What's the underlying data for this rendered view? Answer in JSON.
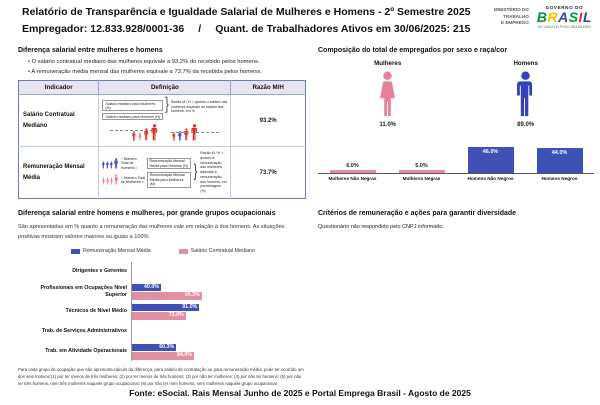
{
  "header": {
    "title": "Relatório de Transparência e Igualdade Salarial de Mulheres e Homens - 2º Semestre 2025",
    "employer": "Empregador: 12.833.928/0001-36",
    "separator": "/",
    "workers": "Quant. de Trabalhadores Ativos em 30/06/2025: 215",
    "ministry": "MINISTÉRIO DO\nTRABALHO\nE EMPREGO",
    "gov_top": "GOVERNO DO",
    "gov_name": "BRASIL",
    "gov_name_colors": [
      "#00923B",
      "#F8C300",
      "#2B4899",
      "#00923B",
      "#E03227",
      "#2B4899"
    ],
    "gov_tagline": "DO LADO DO POVO BRASILEIRO"
  },
  "salary_gap": {
    "heading": "Diferença salarial entre mulheres e homens",
    "bullets": [
      "O salário contratual mediano das mulheres equivale a 93.2% do recebido pelos homens.",
      "A remuneração média mensal das mulheres equivale a 73.7% da recebida pelos homens."
    ],
    "table": {
      "headers": [
        "Indicador",
        "Definição",
        "Razão M/H"
      ],
      "rows": [
        {
          "indicator": "Salário Contratual Mediano",
          "ratio": "93.2%",
          "def_line_women": "Salário mediano para Mulheres (M)",
          "def_line_men": "Salário mediano para Homens (H)",
          "def_note": "Razão M / H = quanto o salário das mulheres equivale ao salário dos homens, em %"
        },
        {
          "indicator": "Remuneração Mensal Média",
          "ratio": "73.7%",
          "formula_men_divisor": "÷ Número Total de Homens =",
          "formula_men_result": "Remuneração Mensal Média para Homens (H)",
          "formula_women_divisor": "÷ Número Total de Mulheres =",
          "formula_women_result": "Remuneração Mensal Média para Mulheres (M)",
          "def_note": "Razão M / H = quanto a remuneração das mulheres equivale à remuneração dos homens, em porcentagem (%)"
        }
      ]
    }
  },
  "composition": {
    "heading": "Composição do total de empregados por sexo e raça/cor"
  },
  "occupation": {
    "heading": "Diferença salarial entre homens e mulheres, por grande grupos ocupacionais",
    "description": "São apresentadas em % quanto a remuneração das mulheres vale em relação à dos homens. As situações positivas mostram valores maiores ou iguais a 100%",
    "footnote": "Para cada grupo de ocupação que não apresenta cálculo da diferença, para salário de contratação ou para remuneração média, pode ter ocorrido um dos seis motivos:(1) por ter menos de três mulheres; (2) por ter menos de três homens; (3) por não ter mulheres; (4) por não ter homens; (5) por não ter três homens, nem três mulheres naquele grupo ocupacional; (6) por não ter nem homens, nem mulheres naquele grupo ocupacional"
  },
  "criteria": {
    "heading": "Critérios de remuneração e ações para garantir diversidade",
    "body": "Questionário não respondido pelo CNPJ informado."
  },
  "footer": {
    "source": "Fonte: eSocial. Rais Mensal Junho de 2025 e Portal Emprega Brasil - Agosto de 2025"
  },
  "colors": {
    "accent_blue": "#3F50B6",
    "accent_pink": "#E18FA2",
    "accent_red": "#DE2A1B"
  },
  "chart_data": [
    {
      "id": "employees_by_sex",
      "type": "pictogram",
      "categories": [
        "Mulheres",
        "Homens"
      ],
      "values": [
        11.0,
        89.0
      ],
      "labels": [
        "11.0%",
        "89.0%"
      ]
    },
    {
      "id": "employees_by_sex_race",
      "type": "bar",
      "categories": [
        "Mulheres Não Negras",
        "Mulheres Negras",
        "Homens Não Negros",
        "Homens Negros"
      ],
      "values": [
        6.0,
        5.0,
        46.0,
        44.0
      ],
      "labels": [
        "6.0%",
        "5.0%",
        "46.0%",
        "44.0%"
      ],
      "colors": [
        "#E18FA2",
        "#E18FA2",
        "#3F50B6",
        "#3F50B6"
      ],
      "ylim": [
        0,
        50
      ],
      "grid": false
    },
    {
      "id": "gap_by_occupation",
      "type": "bar-horizontal",
      "categories": [
        "Dirigentes e Gerentes",
        "Profissionais em Ocupações Nível Superior",
        "Técnicos de Nível Médio",
        "Trab. de Serviços Administrativos",
        "Trab. em Atividade Operacionais"
      ],
      "series": [
        {
          "name": "Remuneração Mensal Média",
          "color": "#3F50B6",
          "values": [
            null,
            40.0,
            91.0,
            null,
            60.3
          ],
          "labels": [
            "",
            "40.0%",
            "91.0%",
            "",
            "60.3%"
          ]
        },
        {
          "name": "Salário Contratual Mediano",
          "color": "#E18FA2",
          "values": [
            null,
            94.3,
            73.0,
            null,
            84.0
          ],
          "labels": [
            "",
            "94.3%",
            "73.0%",
            "",
            "84.0%"
          ]
        }
      ],
      "xlim": [
        0,
        100
      ],
      "legend_position": "top"
    }
  ]
}
